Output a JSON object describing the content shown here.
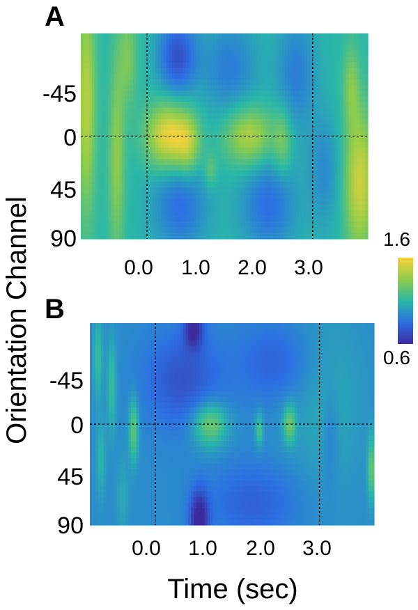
{
  "chart_data": [
    {
      "panel": "A",
      "type": "heatmap",
      "xlabel": "Time (sec)",
      "ylabel": "Orientation Channel",
      "x_ticks": [
        "0.0",
        "1.0",
        "2.0",
        "3.0"
      ],
      "y_ticks": [
        "-45",
        "0",
        "45",
        "90"
      ],
      "xlim": [
        -1.2,
        4.0
      ],
      "ylim": [
        -90,
        90
      ],
      "vlines": [
        0.0,
        3.0
      ],
      "hlines": [
        0
      ],
      "value_range": [
        0.6,
        1.6
      ],
      "background_value": 1.1,
      "blobs": [
        {
          "t": -1.1,
          "o": -30,
          "st": 0.12,
          "so": 70,
          "a": 0.35
        },
        {
          "t": -0.55,
          "o": 20,
          "st": 0.1,
          "so": 60,
          "a": 0.25
        },
        {
          "t": -0.35,
          "o": -70,
          "st": 0.12,
          "so": 30,
          "a": 0.2
        },
        {
          "t": 0.4,
          "o": 0,
          "st": 0.28,
          "so": 20,
          "a": 0.5
        },
        {
          "t": 0.75,
          "o": 8,
          "st": 0.15,
          "so": 18,
          "a": 0.25
        },
        {
          "t": 1.15,
          "o": 30,
          "st": 0.08,
          "so": 10,
          "a": 0.15
        },
        {
          "t": 1.85,
          "o": 0,
          "st": 0.3,
          "so": 18,
          "a": 0.35
        },
        {
          "t": 2.45,
          "o": 5,
          "st": 0.12,
          "so": 20,
          "a": 0.2
        },
        {
          "t": 3.85,
          "o": 40,
          "st": 0.18,
          "so": 45,
          "a": 0.4
        },
        {
          "t": 3.7,
          "o": -45,
          "st": 0.1,
          "so": 25,
          "a": 0.2
        },
        {
          "t": 0.55,
          "o": -70,
          "st": 0.25,
          "so": 25,
          "a": -0.35
        },
        {
          "t": 0.6,
          "o": 60,
          "st": 0.35,
          "so": 30,
          "a": -0.25
        },
        {
          "t": 2.2,
          "o": 60,
          "st": 0.35,
          "so": 30,
          "a": -0.25
        },
        {
          "t": 1.5,
          "o": -60,
          "st": 0.35,
          "so": 30,
          "a": -0.2
        },
        {
          "t": 2.7,
          "o": -55,
          "st": 0.25,
          "so": 35,
          "a": -0.2
        },
        {
          "t": 3.2,
          "o": 30,
          "st": 0.2,
          "so": 35,
          "a": -0.15
        }
      ]
    },
    {
      "panel": "B",
      "type": "heatmap",
      "xlabel": "Time (sec)",
      "ylabel": "Orientation Channel",
      "x_ticks": [
        "0.0",
        "1.0",
        "2.0",
        "3.0"
      ],
      "y_ticks": [
        "-45",
        "0",
        "45",
        "90"
      ],
      "xlim": [
        -1.2,
        4.0
      ],
      "ylim": [
        -90,
        90
      ],
      "vlines": [
        0.0,
        3.0
      ],
      "hlines": [
        0
      ],
      "value_range": [
        0.6,
        1.6
      ],
      "background_value": 0.95,
      "blobs": [
        {
          "t": -1.05,
          "o": -60,
          "st": 0.06,
          "so": 25,
          "a": 0.2
        },
        {
          "t": -0.8,
          "o": -35,
          "st": 0.06,
          "so": 30,
          "a": 0.2
        },
        {
          "t": -0.4,
          "o": 5,
          "st": 0.06,
          "so": 20,
          "a": 0.3
        },
        {
          "t": -1.0,
          "o": 30,
          "st": 0.06,
          "so": 25,
          "a": 0.15
        },
        {
          "t": -0.6,
          "o": 65,
          "st": 0.08,
          "so": 25,
          "a": 0.1
        },
        {
          "t": 1.0,
          "o": 0,
          "st": 0.22,
          "so": 14,
          "a": 0.35
        },
        {
          "t": 1.9,
          "o": 5,
          "st": 0.05,
          "so": 10,
          "a": 0.25
        },
        {
          "t": 2.45,
          "o": 0,
          "st": 0.08,
          "so": 12,
          "a": 0.3
        },
        {
          "t": 3.1,
          "o": -20,
          "st": 0.5,
          "so": 60,
          "a": 0.1
        },
        {
          "t": 3.95,
          "o": 40,
          "st": 0.05,
          "so": 20,
          "a": 0.3
        },
        {
          "t": 0.7,
          "o": -85,
          "st": 0.12,
          "so": 12,
          "a": -0.35
        },
        {
          "t": 0.8,
          "o": 85,
          "st": 0.12,
          "so": 18,
          "a": -0.4
        },
        {
          "t": 0.5,
          "o": -40,
          "st": 0.5,
          "so": 30,
          "a": -0.2
        },
        {
          "t": 1.8,
          "o": 70,
          "st": 0.6,
          "so": 25,
          "a": -0.15
        },
        {
          "t": 2.2,
          "o": -55,
          "st": 0.5,
          "so": 25,
          "a": -0.15
        },
        {
          "t": 3.2,
          "o": 10,
          "st": 0.1,
          "so": 30,
          "a": -0.1
        }
      ]
    }
  ],
  "figure": {
    "panel_labels": [
      "A",
      "B"
    ],
    "ylabel": "Orientation Channel",
    "xlabel": "Time (sec)",
    "colorbar": {
      "max_label": "1.6",
      "min_label": "0.6"
    }
  },
  "colors": {
    "low": "#3d2b9e",
    "mid_low": "#2c6fe3",
    "mid": "#2ab7a8",
    "mid_high": "#8fcc4b",
    "high": "#f7d23a",
    "dashed_line": "#000000"
  }
}
